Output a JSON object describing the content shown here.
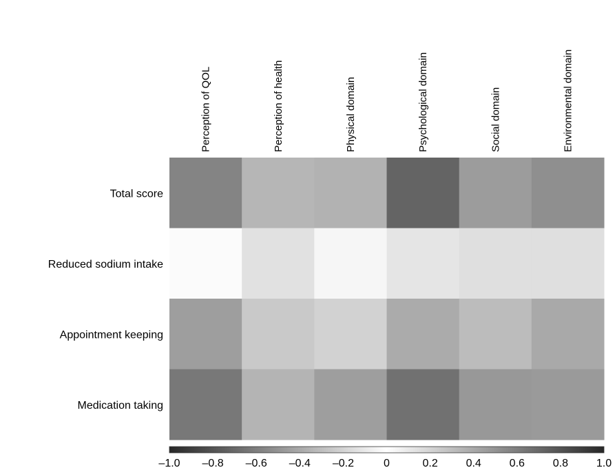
{
  "chart_data": {
    "type": "heatmap",
    "columns": [
      "Perception of QOL",
      "Perception of health",
      "Physical domain",
      "Psychological domain",
      "Social domain",
      "Environmental domain"
    ],
    "rows": [
      "Total score",
      "Reduced sodium intake",
      "Appointment keeping",
      "Medication taking"
    ],
    "values": [
      [
        0.57,
        0.34,
        0.36,
        0.72,
        0.46,
        0.52
      ],
      [
        0.02,
        0.14,
        0.04,
        0.12,
        0.15,
        0.15
      ],
      [
        0.45,
        0.25,
        0.21,
        0.39,
        0.31,
        0.4
      ],
      [
        0.63,
        0.35,
        0.45,
        0.66,
        0.48,
        0.47
      ]
    ],
    "colorbar": {
      "range": [
        -1.0,
        1.0
      ],
      "ticks": [
        -1.0,
        -0.8,
        -0.6,
        -0.4,
        -0.2,
        0,
        0.2,
        0.4,
        0.6,
        0.8,
        1.0
      ],
      "tick_labels": [
        "–1.0",
        "–0.8",
        "–0.6",
        "–0.4",
        "–0.2",
        "0",
        "0.2",
        "0.4",
        "0.6",
        "0.8",
        "1.0"
      ],
      "colormap": "gray, dark at -1 and +1, white at 0"
    }
  }
}
